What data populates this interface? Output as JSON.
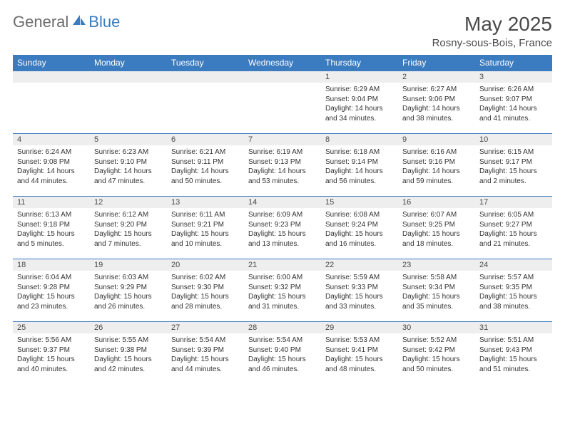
{
  "logo": {
    "text_gray": "General",
    "text_blue": "Blue"
  },
  "title": "May 2025",
  "location": "Rosny-sous-Bois, France",
  "header_bg": "#3b7bbf",
  "day_headers": [
    "Sunday",
    "Monday",
    "Tuesday",
    "Wednesday",
    "Thursday",
    "Friday",
    "Saturday"
  ],
  "weeks": [
    [
      {
        "n": "",
        "sunrise": "",
        "sunset": "",
        "daylight": ""
      },
      {
        "n": "",
        "sunrise": "",
        "sunset": "",
        "daylight": ""
      },
      {
        "n": "",
        "sunrise": "",
        "sunset": "",
        "daylight": ""
      },
      {
        "n": "",
        "sunrise": "",
        "sunset": "",
        "daylight": ""
      },
      {
        "n": "1",
        "sunrise": "Sunrise: 6:29 AM",
        "sunset": "Sunset: 9:04 PM",
        "daylight": "Daylight: 14 hours and 34 minutes."
      },
      {
        "n": "2",
        "sunrise": "Sunrise: 6:27 AM",
        "sunset": "Sunset: 9:06 PM",
        "daylight": "Daylight: 14 hours and 38 minutes."
      },
      {
        "n": "3",
        "sunrise": "Sunrise: 6:26 AM",
        "sunset": "Sunset: 9:07 PM",
        "daylight": "Daylight: 14 hours and 41 minutes."
      }
    ],
    [
      {
        "n": "4",
        "sunrise": "Sunrise: 6:24 AM",
        "sunset": "Sunset: 9:08 PM",
        "daylight": "Daylight: 14 hours and 44 minutes."
      },
      {
        "n": "5",
        "sunrise": "Sunrise: 6:23 AM",
        "sunset": "Sunset: 9:10 PM",
        "daylight": "Daylight: 14 hours and 47 minutes."
      },
      {
        "n": "6",
        "sunrise": "Sunrise: 6:21 AM",
        "sunset": "Sunset: 9:11 PM",
        "daylight": "Daylight: 14 hours and 50 minutes."
      },
      {
        "n": "7",
        "sunrise": "Sunrise: 6:19 AM",
        "sunset": "Sunset: 9:13 PM",
        "daylight": "Daylight: 14 hours and 53 minutes."
      },
      {
        "n": "8",
        "sunrise": "Sunrise: 6:18 AM",
        "sunset": "Sunset: 9:14 PM",
        "daylight": "Daylight: 14 hours and 56 minutes."
      },
      {
        "n": "9",
        "sunrise": "Sunrise: 6:16 AM",
        "sunset": "Sunset: 9:16 PM",
        "daylight": "Daylight: 14 hours and 59 minutes."
      },
      {
        "n": "10",
        "sunrise": "Sunrise: 6:15 AM",
        "sunset": "Sunset: 9:17 PM",
        "daylight": "Daylight: 15 hours and 2 minutes."
      }
    ],
    [
      {
        "n": "11",
        "sunrise": "Sunrise: 6:13 AM",
        "sunset": "Sunset: 9:18 PM",
        "daylight": "Daylight: 15 hours and 5 minutes."
      },
      {
        "n": "12",
        "sunrise": "Sunrise: 6:12 AM",
        "sunset": "Sunset: 9:20 PM",
        "daylight": "Daylight: 15 hours and 7 minutes."
      },
      {
        "n": "13",
        "sunrise": "Sunrise: 6:11 AM",
        "sunset": "Sunset: 9:21 PM",
        "daylight": "Daylight: 15 hours and 10 minutes."
      },
      {
        "n": "14",
        "sunrise": "Sunrise: 6:09 AM",
        "sunset": "Sunset: 9:23 PM",
        "daylight": "Daylight: 15 hours and 13 minutes."
      },
      {
        "n": "15",
        "sunrise": "Sunrise: 6:08 AM",
        "sunset": "Sunset: 9:24 PM",
        "daylight": "Daylight: 15 hours and 16 minutes."
      },
      {
        "n": "16",
        "sunrise": "Sunrise: 6:07 AM",
        "sunset": "Sunset: 9:25 PM",
        "daylight": "Daylight: 15 hours and 18 minutes."
      },
      {
        "n": "17",
        "sunrise": "Sunrise: 6:05 AM",
        "sunset": "Sunset: 9:27 PM",
        "daylight": "Daylight: 15 hours and 21 minutes."
      }
    ],
    [
      {
        "n": "18",
        "sunrise": "Sunrise: 6:04 AM",
        "sunset": "Sunset: 9:28 PM",
        "daylight": "Daylight: 15 hours and 23 minutes."
      },
      {
        "n": "19",
        "sunrise": "Sunrise: 6:03 AM",
        "sunset": "Sunset: 9:29 PM",
        "daylight": "Daylight: 15 hours and 26 minutes."
      },
      {
        "n": "20",
        "sunrise": "Sunrise: 6:02 AM",
        "sunset": "Sunset: 9:30 PM",
        "daylight": "Daylight: 15 hours and 28 minutes."
      },
      {
        "n": "21",
        "sunrise": "Sunrise: 6:00 AM",
        "sunset": "Sunset: 9:32 PM",
        "daylight": "Daylight: 15 hours and 31 minutes."
      },
      {
        "n": "22",
        "sunrise": "Sunrise: 5:59 AM",
        "sunset": "Sunset: 9:33 PM",
        "daylight": "Daylight: 15 hours and 33 minutes."
      },
      {
        "n": "23",
        "sunrise": "Sunrise: 5:58 AM",
        "sunset": "Sunset: 9:34 PM",
        "daylight": "Daylight: 15 hours and 35 minutes."
      },
      {
        "n": "24",
        "sunrise": "Sunrise: 5:57 AM",
        "sunset": "Sunset: 9:35 PM",
        "daylight": "Daylight: 15 hours and 38 minutes."
      }
    ],
    [
      {
        "n": "25",
        "sunrise": "Sunrise: 5:56 AM",
        "sunset": "Sunset: 9:37 PM",
        "daylight": "Daylight: 15 hours and 40 minutes."
      },
      {
        "n": "26",
        "sunrise": "Sunrise: 5:55 AM",
        "sunset": "Sunset: 9:38 PM",
        "daylight": "Daylight: 15 hours and 42 minutes."
      },
      {
        "n": "27",
        "sunrise": "Sunrise: 5:54 AM",
        "sunset": "Sunset: 9:39 PM",
        "daylight": "Daylight: 15 hours and 44 minutes."
      },
      {
        "n": "28",
        "sunrise": "Sunrise: 5:54 AM",
        "sunset": "Sunset: 9:40 PM",
        "daylight": "Daylight: 15 hours and 46 minutes."
      },
      {
        "n": "29",
        "sunrise": "Sunrise: 5:53 AM",
        "sunset": "Sunset: 9:41 PM",
        "daylight": "Daylight: 15 hours and 48 minutes."
      },
      {
        "n": "30",
        "sunrise": "Sunrise: 5:52 AM",
        "sunset": "Sunset: 9:42 PM",
        "daylight": "Daylight: 15 hours and 50 minutes."
      },
      {
        "n": "31",
        "sunrise": "Sunrise: 5:51 AM",
        "sunset": "Sunset: 9:43 PM",
        "daylight": "Daylight: 15 hours and 51 minutes."
      }
    ]
  ]
}
